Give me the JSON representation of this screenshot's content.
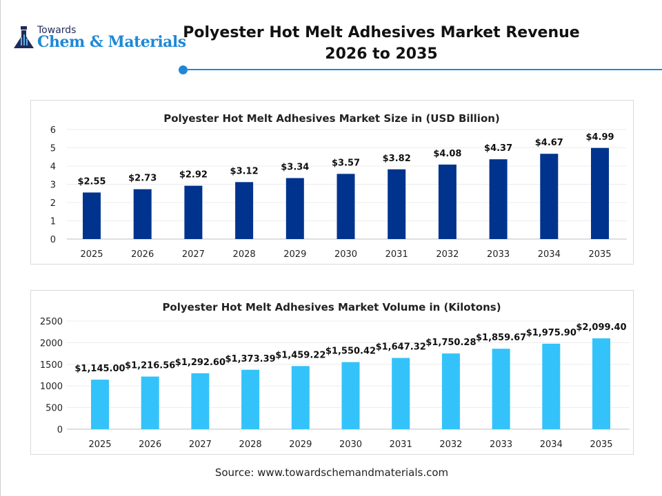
{
  "header": {
    "logo_small": "Towards",
    "logo_brand": "Chem & Materials",
    "title_line1": "Polyester Hot Melt Adhesives Market Revenue",
    "title_line2": "2026 to 2035",
    "accent_color": "#1e88d6"
  },
  "chart_data": [
    {
      "type": "bar",
      "title": "Polyester Hot Melt Adhesives Market Size in (USD Billion)",
      "categories": [
        "2025",
        "2026",
        "2027",
        "2028",
        "2029",
        "2030",
        "2031",
        "2032",
        "2033",
        "2034",
        "2035"
      ],
      "values": [
        2.55,
        2.73,
        2.92,
        3.12,
        3.34,
        3.57,
        3.82,
        4.08,
        4.37,
        4.67,
        4.99
      ],
      "data_labels": [
        "$2.55",
        "$2.73",
        "$2.92",
        "$3.12",
        "$3.34",
        "$3.57",
        "$3.82",
        "$4.08",
        "$4.37",
        "$4.67",
        "$4.99"
      ],
      "ylim": [
        0,
        6
      ],
      "yticks": [
        "0",
        "1",
        "2",
        "3",
        "4",
        "5",
        "6"
      ],
      "grid": true,
      "color": "#00338d"
    },
    {
      "type": "bar",
      "title": "Polyester Hot Melt Adhesives Market Volume in (Kilotons)",
      "categories": [
        "2025",
        "2026",
        "2027",
        "2028",
        "2029",
        "2030",
        "2031",
        "2032",
        "2033",
        "2034",
        "2035"
      ],
      "values": [
        1145.0,
        1216.56,
        1292.6,
        1373.39,
        1459.22,
        1550.42,
        1647.32,
        1750.28,
        1859.67,
        1975.9,
        2099.4
      ],
      "data_labels": [
        "$1,145.00",
        "$1,216.56",
        "$1,292.60",
        "$1,373.39",
        "$1,459.22",
        "$1,550.42",
        "$1,647.32",
        "$1,750.28",
        "$1,859.67",
        "$1,975.90",
        "$2,099.40"
      ],
      "ylim": [
        0,
        2500
      ],
      "yticks": [
        "0",
        "500",
        "1000",
        "1500",
        "2000",
        "2500"
      ],
      "grid": true,
      "color": "#33c3fa"
    }
  ],
  "footer": {
    "source": "Source: www.towardschemandmaterials.com"
  }
}
